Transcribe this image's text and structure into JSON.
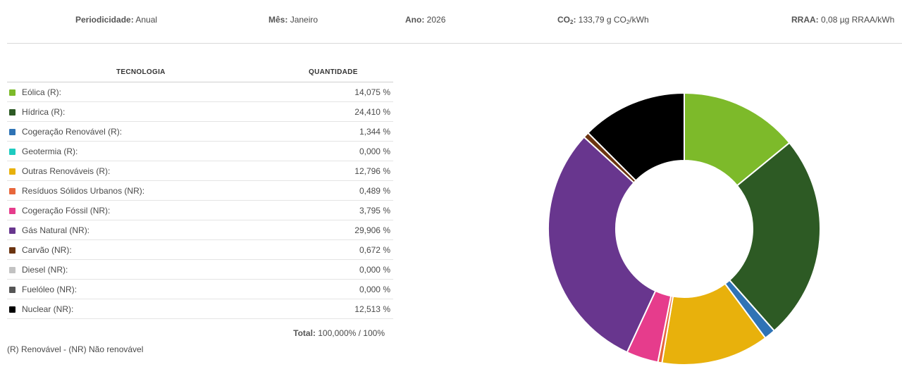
{
  "header": {
    "periodicidade_label": "Periodicidade:",
    "periodicidade_value": "Anual",
    "mes_label": "Mês:",
    "mes_value": "Janeiro",
    "ano_label": "Ano:",
    "ano_value": "2026",
    "co2_label_a": "CO",
    "co2_label_sub": "2",
    "co2_label_b": ":",
    "co2_value_a": "133,79 g CO",
    "co2_value_sub": "2",
    "co2_value_b": "/kWh",
    "rraa_label": "RRAA:",
    "rraa_value": "0,08 µg RRAA/kWh"
  },
  "table": {
    "col_tech": "TECNOLOGIA",
    "col_qty": "QUANTIDADE",
    "rows": [
      {
        "name": "Eólica (R):",
        "value": "14,075 %"
      },
      {
        "name": "Hídrica (R):",
        "value": "24,410 %"
      },
      {
        "name": "Cogeração Renovável (R):",
        "value": "1,344 %"
      },
      {
        "name": "Geotermia (R):",
        "value": "0,000 %"
      },
      {
        "name": "Outras Renováveis (R):",
        "value": "12,796 %"
      },
      {
        "name": "Resíduos Sólidos Urbanos (NR):",
        "value": "0,489 %"
      },
      {
        "name": "Cogeração Fóssil (NR):",
        "value": "3,795 %"
      },
      {
        "name": "Gás Natural (NR):",
        "value": "29,906 %"
      },
      {
        "name": "Carvão (NR):",
        "value": "0,672 %"
      },
      {
        "name": "Diesel (NR):",
        "value": "0,000 %"
      },
      {
        "name": "Fuelóleo (NR):",
        "value": "0,000 %"
      },
      {
        "name": "Nuclear (NR):",
        "value": "12,513 %"
      }
    ],
    "total_label": "Total:",
    "total_value": "100,000% / 100%",
    "legend_note": "(R) Renovável - (NR) Não renovável"
  },
  "chart_data": {
    "type": "pie",
    "variant": "donut",
    "categories": [
      "Eólica (R):",
      "Hídrica (R):",
      "Cogeração Renovável (R):",
      "Geotermia (R):",
      "Outras Renováveis (R):",
      "Resíduos Sólidos Urbanos (NR):",
      "Cogeração Fóssil (NR):",
      "Gás Natural (NR):",
      "Carvão (NR):",
      "Diesel (NR):",
      "Fuelóleo (NR):",
      "Nuclear (NR):"
    ],
    "values": [
      14.075,
      24.41,
      1.344,
      0.0,
      12.796,
      0.489,
      3.795,
      29.906,
      0.672,
      0.0,
      0.0,
      12.513
    ],
    "colors": [
      "#7dba2a",
      "#2d5a24",
      "#2f73b5",
      "#1ecbc0",
      "#e8b10c",
      "#e8673c",
      "#e63c8c",
      "#68368e",
      "#6b3410",
      "#c2c2c2",
      "#555555",
      "#000000"
    ],
    "title": "",
    "legend": "table-left"
  }
}
